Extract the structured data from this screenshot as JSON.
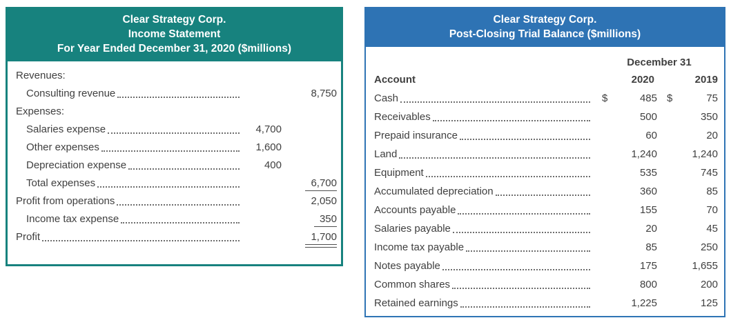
{
  "income_statement": {
    "title_lines": [
      "Clear Strategy Corp.",
      "Income Statement",
      "For Year Ended December 31, 2020 ($millions)"
    ],
    "rows": [
      {
        "label": "Revenues:",
        "indent": 0,
        "leader": false,
        "col1": "",
        "col2": "",
        "underline": "none"
      },
      {
        "label": "Consulting revenue",
        "indent": 1,
        "leader": true,
        "col1": "",
        "col2": "8,750",
        "underline": "none"
      },
      {
        "label": "Expenses:",
        "indent": 0,
        "leader": false,
        "col1": "",
        "col2": "",
        "underline": "none"
      },
      {
        "label": "Salaries expense",
        "indent": 1,
        "leader": true,
        "col1": "4,700",
        "col2": "",
        "underline": "none"
      },
      {
        "label": "Other expenses",
        "indent": 1,
        "leader": true,
        "col1": "1,600",
        "col2": "",
        "underline": "none"
      },
      {
        "label": "Depreciation expense",
        "indent": 1,
        "leader": true,
        "col1": "400",
        "col2": "",
        "underline": "none"
      },
      {
        "label": "Total expenses",
        "indent": 1,
        "leader": true,
        "col1": "",
        "col2": "6,700",
        "underline": "single"
      },
      {
        "label": "Profit from operations",
        "indent": 0,
        "leader": true,
        "col1": "",
        "col2": "2,050",
        "underline": "none"
      },
      {
        "label": "Income tax expense",
        "indent": 1,
        "leader": true,
        "col1": "",
        "col2": "350",
        "underline": "single"
      },
      {
        "label": "Profit",
        "indent": 0,
        "leader": true,
        "col1": "",
        "col2": "1,700",
        "underline": "double"
      }
    ]
  },
  "trial_balance": {
    "title_lines": [
      "Clear Strategy Corp.",
      "Post-Closing Trial Balance ($millions)"
    ],
    "date_header": "December 31",
    "column_headers": {
      "account": "Account",
      "y2020": "2020",
      "y2019": "2019"
    },
    "dollar_sign": "$",
    "rows": [
      {
        "label": "Cash",
        "dollar": true,
        "v2020": "485",
        "v2019": "75"
      },
      {
        "label": "Receivables",
        "dollar": false,
        "v2020": "500",
        "v2019": "350"
      },
      {
        "label": "Prepaid insurance",
        "dollar": false,
        "v2020": "60",
        "v2019": "20"
      },
      {
        "label": "Land",
        "dollar": false,
        "v2020": "1,240",
        "v2019": "1,240"
      },
      {
        "label": "Equipment",
        "dollar": false,
        "v2020": "535",
        "v2019": "745"
      },
      {
        "label": "Accumulated depreciation",
        "dollar": false,
        "v2020": "360",
        "v2019": "85"
      },
      {
        "label": "Accounts payable",
        "dollar": false,
        "v2020": "155",
        "v2019": "70"
      },
      {
        "label": "Salaries payable",
        "dollar": false,
        "v2020": "20",
        "v2019": "45"
      },
      {
        "label": "Income tax payable",
        "dollar": false,
        "v2020": "85",
        "v2019": "250"
      },
      {
        "label": "Notes payable",
        "dollar": false,
        "v2020": "175",
        "v2019": "1,655"
      },
      {
        "label": "Common shares",
        "dollar": false,
        "v2020": "800",
        "v2019": "200"
      },
      {
        "label": "Retained earnings",
        "dollar": false,
        "v2020": "1,225",
        "v2019": "125"
      }
    ]
  },
  "colors": {
    "income_header": "#17827e",
    "trial_header": "#2e73b4",
    "body_text": "#3f3f3f"
  }
}
